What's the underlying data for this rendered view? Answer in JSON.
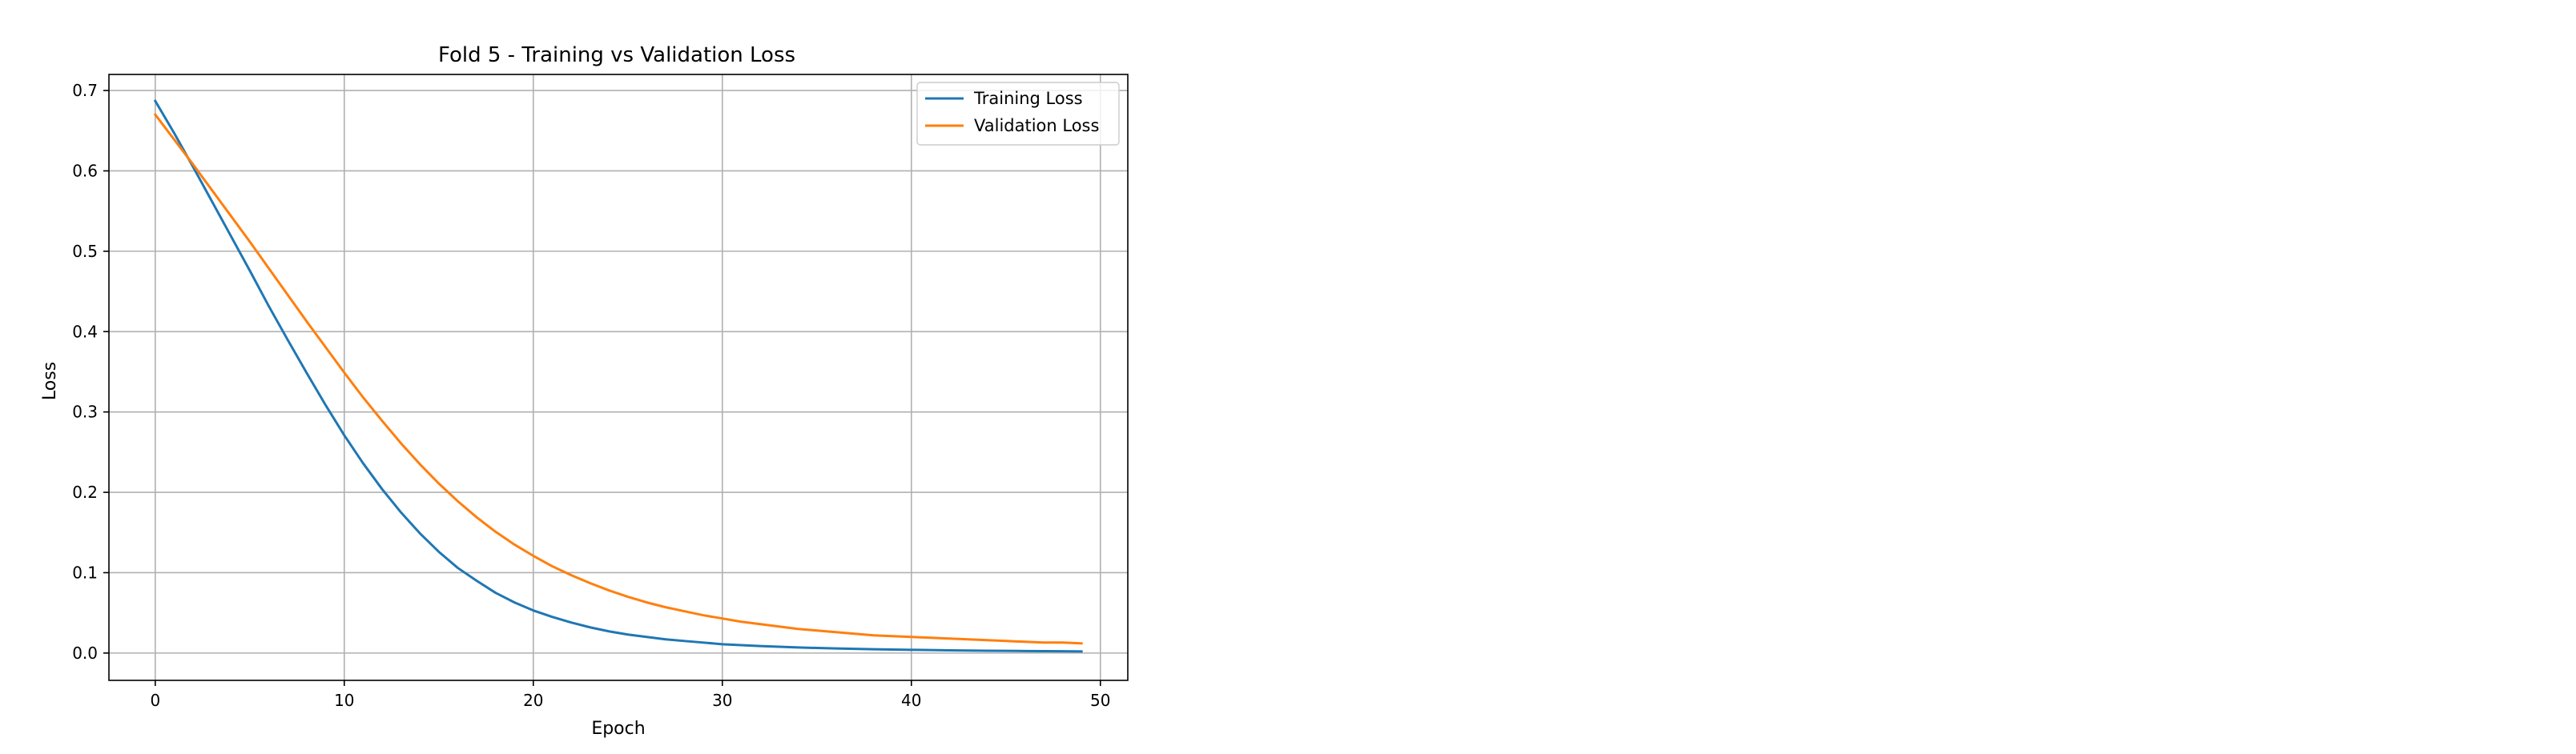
{
  "chart_data": {
    "type": "line",
    "title": "Fold 5 - Training vs Validation Loss",
    "xlabel": "Epoch",
    "ylabel": "Loss",
    "xlim": [
      -2.45,
      51.45
    ],
    "ylim": [
      -0.034,
      0.72
    ],
    "xticks": [
      0,
      10,
      20,
      30,
      40,
      50
    ],
    "yticks": [
      0.0,
      0.1,
      0.2,
      0.3,
      0.4,
      0.5,
      0.6,
      0.7
    ],
    "grid": true,
    "legend_position": "top-right",
    "x": [
      0,
      1,
      2,
      3,
      4,
      5,
      6,
      7,
      8,
      9,
      10,
      11,
      12,
      13,
      14,
      15,
      16,
      17,
      18,
      19,
      20,
      21,
      22,
      23,
      24,
      25,
      26,
      27,
      28,
      29,
      30,
      31,
      32,
      33,
      34,
      35,
      36,
      37,
      38,
      39,
      40,
      41,
      42,
      43,
      44,
      45,
      46,
      47,
      48,
      49
    ],
    "series": [
      {
        "name": "Training Loss",
        "color": "#1f77b4",
        "values": [
          0.687,
          0.647,
          0.605,
          0.562,
          0.519,
          0.476,
          0.432,
          0.39,
          0.349,
          0.309,
          0.271,
          0.236,
          0.204,
          0.175,
          0.149,
          0.126,
          0.106,
          0.09,
          0.075,
          0.063,
          0.053,
          0.045,
          0.038,
          0.032,
          0.027,
          0.023,
          0.02,
          0.017,
          0.015,
          0.013,
          0.011,
          0.0098,
          0.0087,
          0.0078,
          0.007,
          0.0063,
          0.0057,
          0.0052,
          0.0047,
          0.0043,
          0.004,
          0.0037,
          0.0034,
          0.0031,
          0.0029,
          0.0027,
          0.0025,
          0.0023,
          0.0022,
          0.002
        ]
      },
      {
        "name": "Validation Loss",
        "color": "#ff7f0e",
        "values": [
          0.67,
          0.639,
          0.608,
          0.576,
          0.544,
          0.512,
          0.479,
          0.446,
          0.413,
          0.381,
          0.349,
          0.318,
          0.289,
          0.261,
          0.235,
          0.211,
          0.189,
          0.169,
          0.151,
          0.135,
          0.121,
          0.108,
          0.097,
          0.087,
          0.078,
          0.07,
          0.063,
          0.057,
          0.052,
          0.047,
          0.043,
          0.039,
          0.036,
          0.033,
          0.03,
          0.028,
          0.026,
          0.024,
          0.022,
          0.021,
          0.02,
          0.019,
          0.018,
          0.017,
          0.016,
          0.015,
          0.014,
          0.013,
          0.013,
          0.012
        ]
      }
    ]
  }
}
